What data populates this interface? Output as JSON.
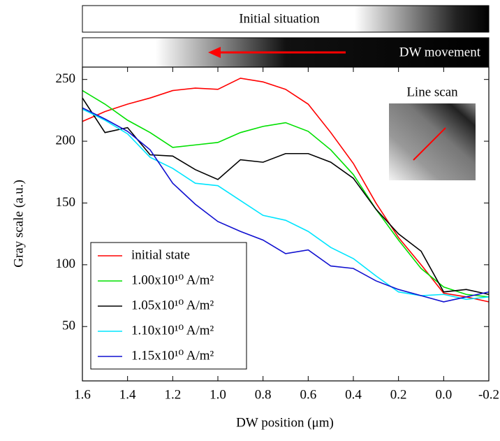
{
  "chart_data": {
    "type": "line",
    "x_label": "DW position (μm)",
    "y_label": "Gray scale (a.u.)",
    "annotations": {
      "top_bar": "Initial situation",
      "bottom_bar": "DW movement",
      "inset": "Line scan"
    },
    "x": [
      1.6,
      1.5,
      1.4,
      1.3,
      1.2,
      1.1,
      1.0,
      0.9,
      0.8,
      0.7,
      0.6,
      0.5,
      0.4,
      0.3,
      0.2,
      0.1,
      0.0,
      -0.1,
      -0.2
    ],
    "series": [
      {
        "name": "initial state",
        "color": "#ff0000",
        "values": [
          216,
          224,
          230,
          235,
          241,
          243,
          242,
          251,
          248,
          242,
          230,
          207,
          182,
          150,
          122,
          100,
          77,
          74,
          70
        ]
      },
      {
        "name": "1.00x10¹⁰ A/m²",
        "color": "#00e000",
        "values": [
          241,
          230,
          217,
          207,
          195,
          197,
          199,
          207,
          212,
          215,
          208,
          193,
          173,
          145,
          120,
          97,
          82,
          76,
          74
        ]
      },
      {
        "name": "1.05x10¹⁰ A/m²",
        "color": "#000000",
        "values": [
          235,
          207,
          211,
          189,
          188,
          177,
          169,
          185,
          183,
          190,
          190,
          183,
          170,
          145,
          125,
          111,
          78,
          80,
          76
        ]
      },
      {
        "name": "1.10x10¹⁰ A/m²",
        "color": "#00e5ff",
        "values": [
          226,
          217,
          206,
          187,
          178,
          166,
          164,
          152,
          140,
          136,
          127,
          114,
          105,
          91,
          78,
          75,
          76,
          72,
          74
        ]
      },
      {
        "name": "1.15x10¹⁰ A/m²",
        "color": "#1010d0",
        "values": [
          227,
          218,
          208,
          193,
          166,
          149,
          135,
          127,
          120,
          109,
          112,
          99,
          97,
          87,
          80,
          75,
          70,
          74,
          78
        ]
      }
    ],
    "xlim": [
      1.6,
      -0.2
    ],
    "xticks": [
      1.6,
      1.4,
      1.2,
      {
        "value": 1.0,
        "label": "1.0"
      },
      0.8,
      0.6,
      0.4,
      0.2,
      {
        "value": 0,
        "label": "0.0"
      },
      -0.2
    ],
    "ylim": [
      6,
      260
    ],
    "yticks": [
      50,
      100,
      150,
      200,
      250
    ],
    "legend": "lower left"
  }
}
